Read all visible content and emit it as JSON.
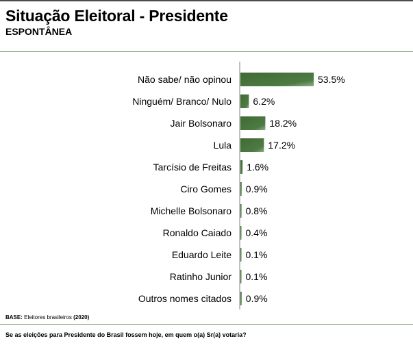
{
  "header": {
    "title": "Situação Eleitoral - Presidente",
    "subtitle": "ESPONTÂNEA"
  },
  "footer": {
    "base_label": "BASE:",
    "base_text": " Eleitores brasileiros ",
    "base_n": "(2020)",
    "question": "Se as eleições para Presidente do Brasil fossem hoje, em quem o(a) Sr(a) votaria?"
  },
  "colors": {
    "bar_dark": "#3f6a35",
    "bar_light": "#8fae85",
    "axis": "#808080",
    "rule": "#7a9a6e"
  },
  "chart_data": {
    "type": "bar",
    "orientation": "horizontal",
    "categories": [
      "Não sabe/ não opinou",
      "Ninguém/ Branco/ Nulo",
      "Jair Bolsonaro",
      "Lula",
      "Tarcísio de Freitas",
      "Ciro Gomes",
      "Michelle Bolsonaro",
      "Ronaldo Caiado",
      "Eduardo Leite",
      "Ratinho Junior",
      "Outros nomes citados"
    ],
    "values": [
      53.5,
      6.2,
      18.2,
      17.2,
      1.6,
      0.9,
      0.8,
      0.4,
      0.1,
      0.1,
      0.9
    ],
    "value_labels": [
      "53.5%",
      "6.2%",
      "18.2%",
      "17.2%",
      "1.6%",
      "0.9%",
      "0.8%",
      "0.4%",
      "0.1%",
      "0.1%",
      "0.9%"
    ],
    "xlim": [
      0,
      55
    ],
    "grid": false,
    "legend": "none"
  }
}
